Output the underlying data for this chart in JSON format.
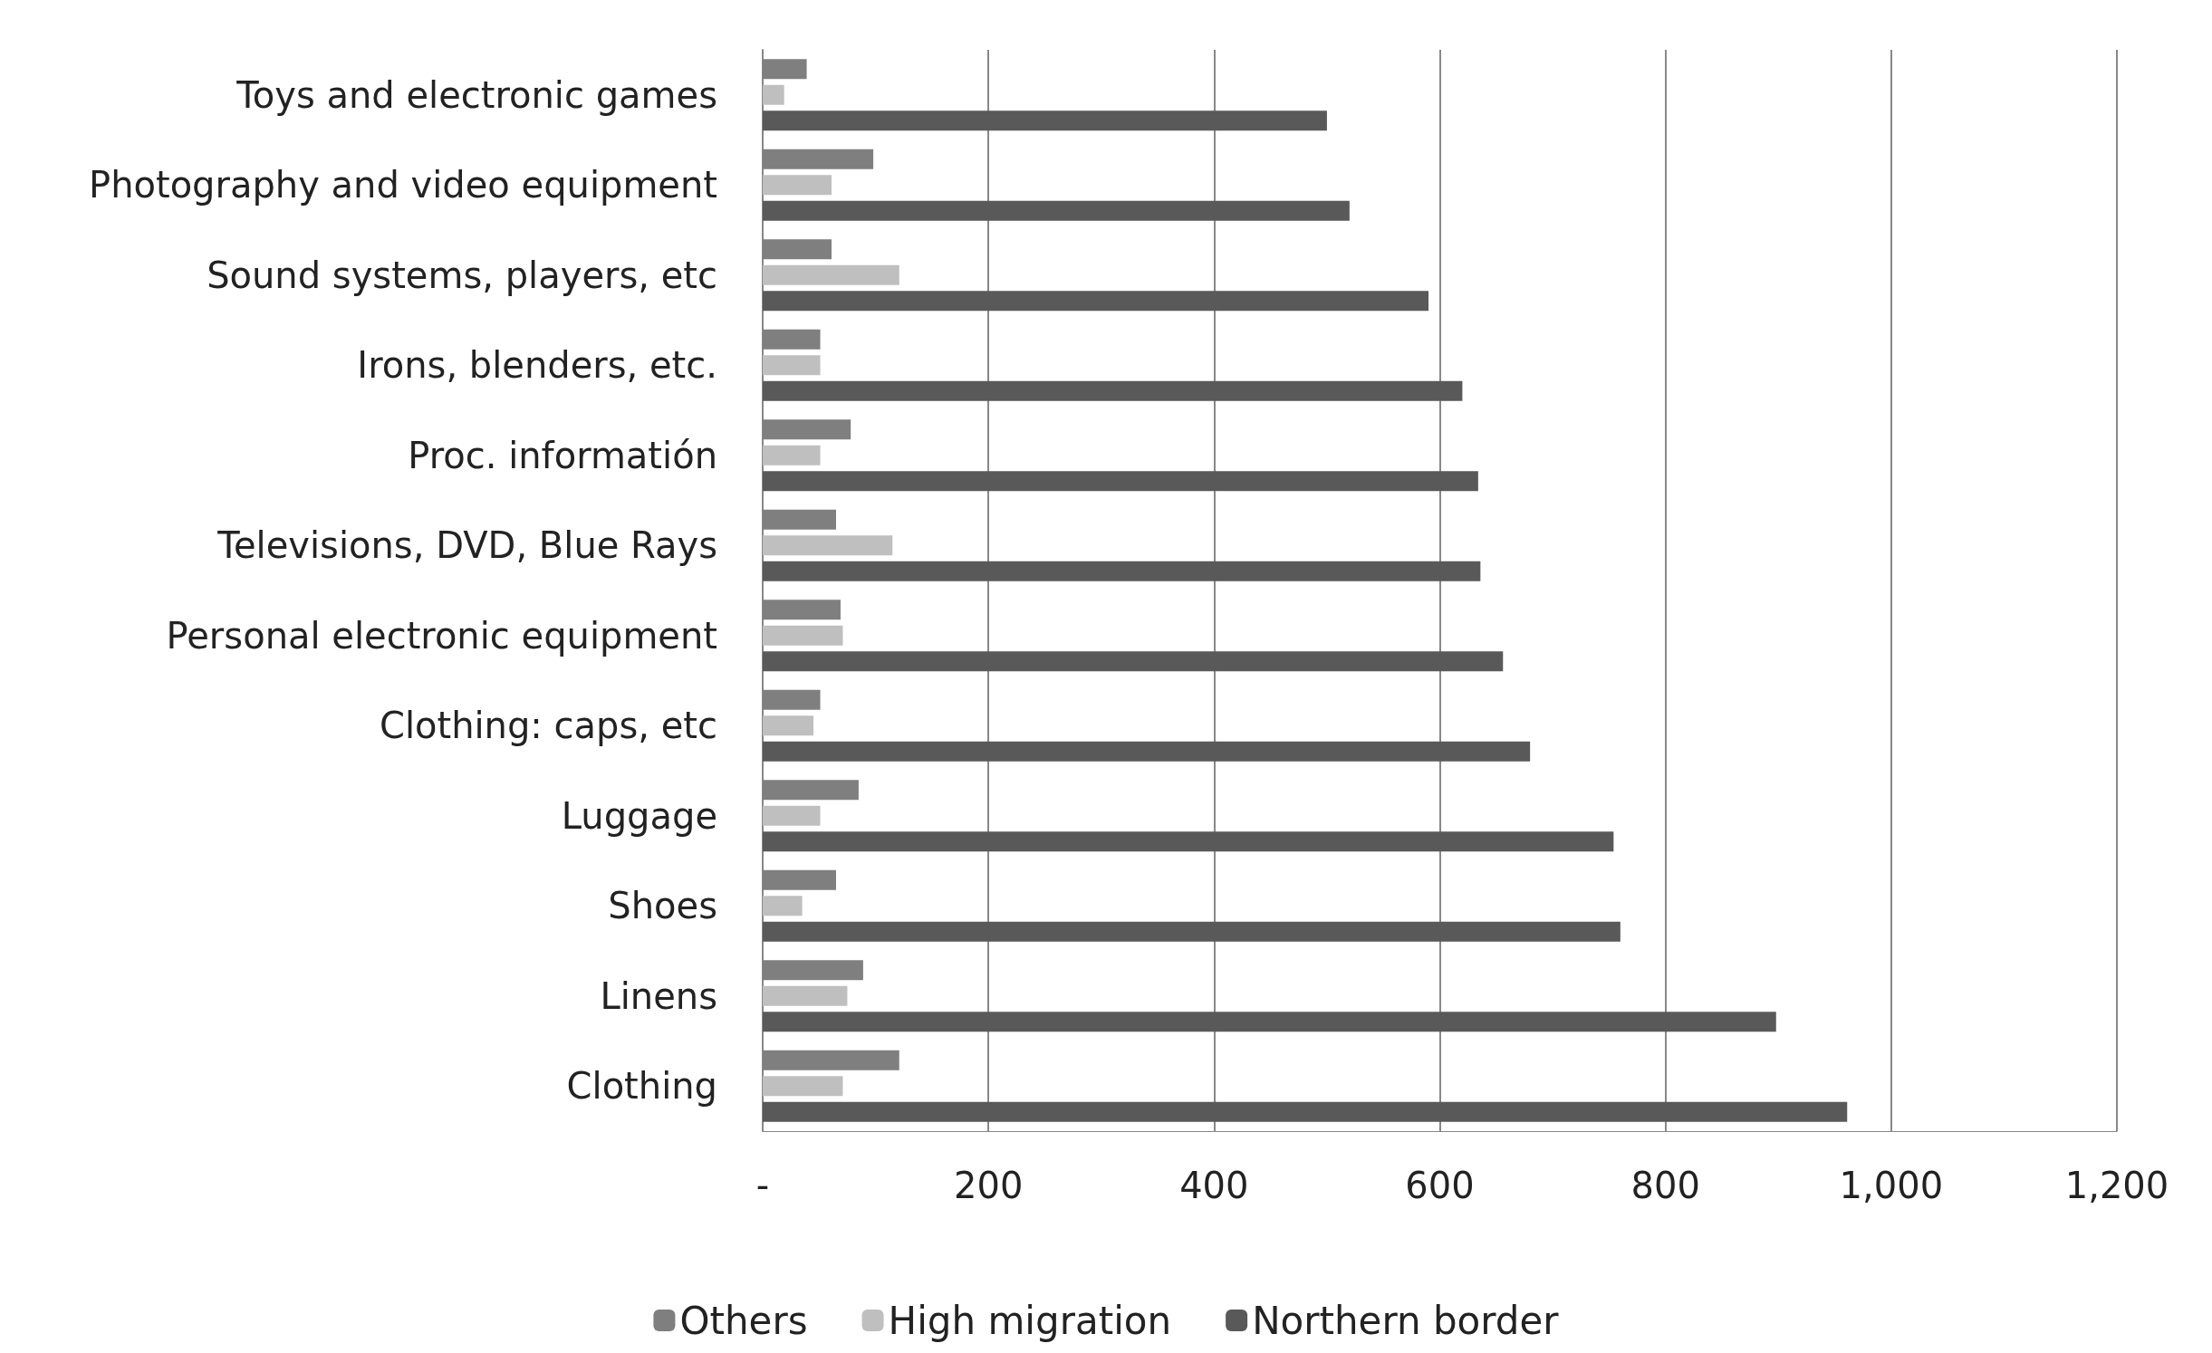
{
  "chart_data": {
    "type": "bar",
    "orientation": "horizontal",
    "categories": [
      "Toys and electronic games",
      "Photography and video equipment",
      "Sound systems, players, etc",
      "Irons, blenders, etc.",
      "Proc. informatión",
      "Televisions, DVD, Blue Rays",
      "Personal electronic equipment",
      "Clothing: caps, etc",
      "Luggage",
      "Shoes",
      "Linens",
      "Clothing"
    ],
    "series": [
      {
        "name": "Others",
        "color": "#7f7f7f",
        "values": [
          39,
          98,
          61,
          51,
          78,
          65,
          69,
          51,
          85,
          65,
          89,
          121
        ]
      },
      {
        "name": "High migration",
        "color": "#bfbfbf",
        "values": [
          19,
          61,
          121,
          51,
          51,
          115,
          71,
          45,
          51,
          35,
          75,
          71
        ]
      },
      {
        "name": "Northern border",
        "color": "#595959",
        "values": [
          500,
          520,
          590,
          620,
          634,
          636,
          656,
          680,
          754,
          760,
          898,
          961
        ]
      }
    ],
    "xlim": [
      0,
      1200
    ],
    "xticks": [
      {
        "value": 0,
        "label": "-"
      },
      200,
      400,
      600,
      800,
      {
        "value": 1000,
        "label": "1,000"
      },
      {
        "value": 1200,
        "label": "1,200"
      }
    ],
    "grid": "x",
    "legend": "bottom"
  }
}
